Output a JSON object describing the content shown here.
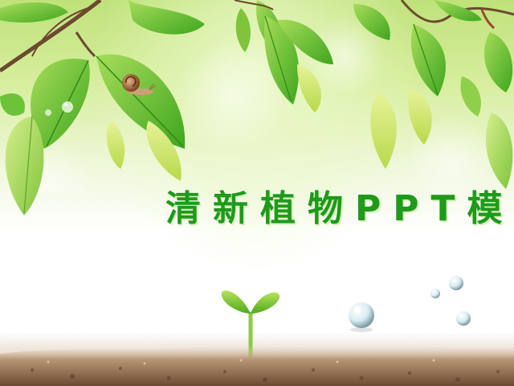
{
  "slide": {
    "title": "清新植物PPT模板"
  },
  "colors": {
    "title_green": "#1f9a1a",
    "leaf_green": "#5fbf2a",
    "leaf_light": "#b9e27a",
    "soil_brown": "#7a5a3e",
    "background_white": "#ffffff"
  },
  "decorations": [
    "leaf-branch-left",
    "leaf-branch-right",
    "snail-icon",
    "water-droplet-icon",
    "seedling-icon",
    "soil-ground"
  ]
}
